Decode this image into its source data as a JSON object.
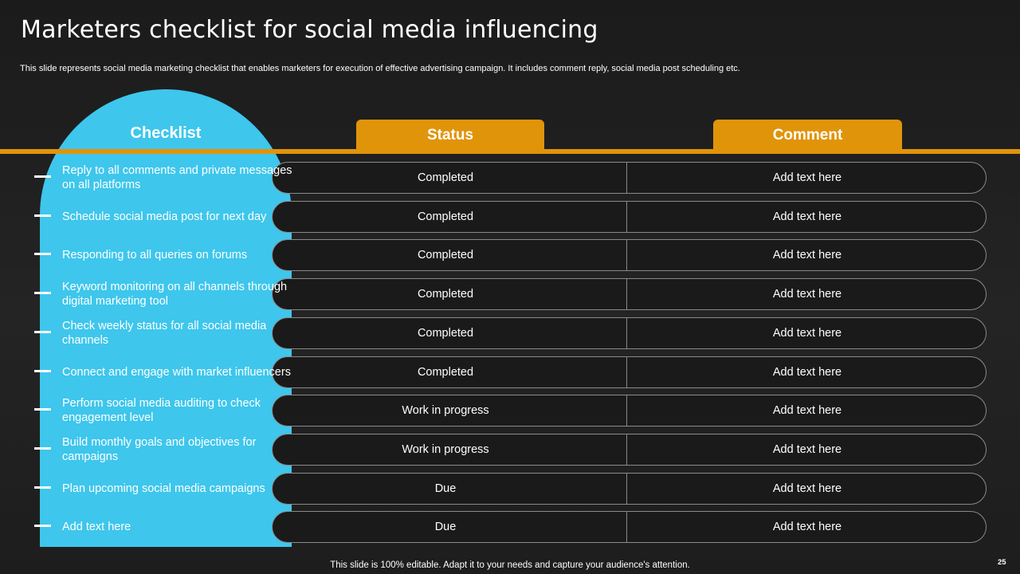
{
  "slide": {
    "title": "Marketers checklist for social media influencing",
    "subtitle": "This slide represents social media marketing checklist that enables marketers for execution of effective  advertising campaign. It includes comment reply, social media post scheduling etc.",
    "footer": "This slide is 100% editable. Adapt it to your needs and capture your audience's attention.",
    "page_number": "25"
  },
  "table": {
    "headers": {
      "checklist": "Checklist",
      "status": "Status",
      "comment": "Comment"
    },
    "rows": [
      {
        "item": "Reply to all comments and private messages on all platforms",
        "status": "Completed",
        "comment": "Add text here"
      },
      {
        "item": "Schedule social media post for next day",
        "status": "Completed",
        "comment": "Add text here"
      },
      {
        "item": "Responding to all queries on forums",
        "status": "Completed",
        "comment": "Add text here"
      },
      {
        "item": "Keyword monitoring on all channels through digital marketing tool",
        "status": "Completed",
        "comment": "Add text here"
      },
      {
        "item": "Check weekly status for all social media channels",
        "status": "Completed",
        "comment": "Add text here"
      },
      {
        "item": "Connect and engage with market influencers",
        "status": "Completed",
        "comment": "Add text here"
      },
      {
        "item": "Perform social media auditing to check engagement level",
        "status": "Work in progress",
        "comment": "Add text here"
      },
      {
        "item": "Build monthly goals and objectives for campaigns",
        "status": "Work in progress",
        "comment": "Add text here"
      },
      {
        "item": "Plan upcoming social media campaigns",
        "status": "Due",
        "comment": "Add text here"
      },
      {
        "item": "Add text here",
        "status": "Due",
        "comment": "Add text here"
      }
    ]
  },
  "colors": {
    "accent_orange": "#e0940a",
    "checklist_blue": "#3ec6ec",
    "background": "#1f1f1f"
  }
}
